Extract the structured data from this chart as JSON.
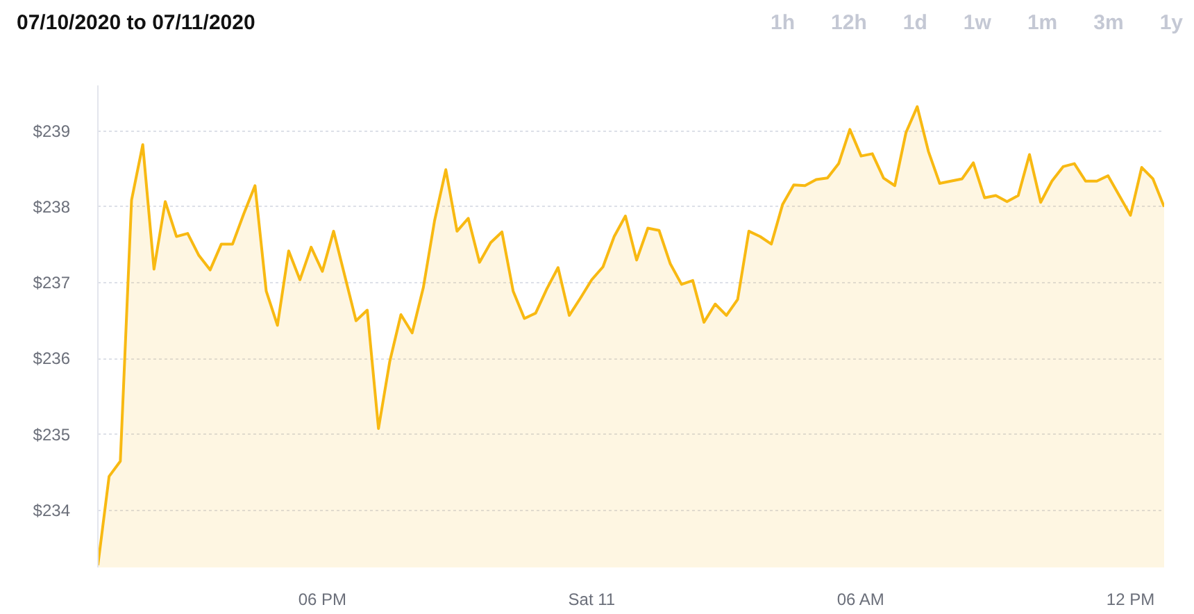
{
  "chart_data": {
    "type": "area",
    "title": "07/10/2020 to 07/11/2020",
    "annotations": [
      "1h",
      "12h",
      "1d",
      "1w",
      "1m",
      "3m",
      "1y"
    ],
    "x": [
      "2020-07-10T13:00",
      "2020-07-10T13:15",
      "2020-07-10T13:30",
      "2020-07-10T13:45",
      "2020-07-10T14:00",
      "2020-07-10T14:15",
      "2020-07-10T14:30",
      "2020-07-10T14:45",
      "2020-07-10T15:00",
      "2020-07-10T15:15",
      "2020-07-10T15:30",
      "2020-07-10T15:45",
      "2020-07-10T16:00",
      "2020-07-10T16:15",
      "2020-07-10T16:30",
      "2020-07-10T16:45",
      "2020-07-10T17:00",
      "2020-07-10T17:15",
      "2020-07-10T17:30",
      "2020-07-10T17:45",
      "2020-07-10T18:00",
      "2020-07-10T18:15",
      "2020-07-10T18:30",
      "2020-07-10T18:45",
      "2020-07-10T19:00",
      "2020-07-10T19:15",
      "2020-07-10T19:30",
      "2020-07-10T19:45",
      "2020-07-10T20:00",
      "2020-07-10T20:15",
      "2020-07-10T20:30",
      "2020-07-10T20:45",
      "2020-07-10T21:00",
      "2020-07-10T21:15",
      "2020-07-10T21:30",
      "2020-07-10T21:45",
      "2020-07-10T22:00",
      "2020-07-10T22:15",
      "2020-07-10T22:30",
      "2020-07-10T22:45",
      "2020-07-10T23:00",
      "2020-07-10T23:15",
      "2020-07-10T23:30",
      "2020-07-10T23:45",
      "2020-07-11T00:00",
      "2020-07-11T00:15",
      "2020-07-11T00:30",
      "2020-07-11T00:45",
      "2020-07-11T01:00",
      "2020-07-11T01:15",
      "2020-07-11T01:30",
      "2020-07-11T01:45",
      "2020-07-11T02:00",
      "2020-07-11T02:15",
      "2020-07-11T02:30",
      "2020-07-11T02:45",
      "2020-07-11T03:00",
      "2020-07-11T03:15",
      "2020-07-11T03:30",
      "2020-07-11T03:45",
      "2020-07-11T04:00",
      "2020-07-11T04:15",
      "2020-07-11T04:30",
      "2020-07-11T04:45",
      "2020-07-11T05:00",
      "2020-07-11T05:15",
      "2020-07-11T05:30",
      "2020-07-11T05:45",
      "2020-07-11T06:00",
      "2020-07-11T06:15",
      "2020-07-11T06:30",
      "2020-07-11T06:45",
      "2020-07-11T07:00",
      "2020-07-11T07:15",
      "2020-07-11T07:30",
      "2020-07-11T07:45",
      "2020-07-11T08:00",
      "2020-07-11T08:15",
      "2020-07-11T08:30",
      "2020-07-11T08:45",
      "2020-07-11T09:00",
      "2020-07-11T09:15",
      "2020-07-11T09:30",
      "2020-07-11T09:45",
      "2020-07-11T10:00",
      "2020-07-11T10:15",
      "2020-07-11T10:30",
      "2020-07-11T10:45",
      "2020-07-11T11:00",
      "2020-07-11T11:15",
      "2020-07-11T11:30",
      "2020-07-11T11:45",
      "2020-07-11T12:00",
      "2020-07-11T12:15",
      "2020-07-11T12:30",
      "2020-07-11T12:45"
    ],
    "series": [
      {
        "color": "#f8b912",
        "values": [
          233.28,
          234.45,
          234.65,
          238.09,
          238.82,
          237.18,
          238.07,
          237.61,
          237.65,
          237.36,
          237.17,
          237.51,
          237.51,
          237.91,
          238.28,
          236.89,
          236.44,
          237.42,
          237.04,
          237.47,
          237.15,
          237.68,
          237.09,
          236.5,
          236.64,
          235.08,
          235.96,
          236.58,
          236.34,
          236.94,
          237.82,
          238.49,
          237.68,
          237.85,
          237.27,
          237.53,
          237.67,
          236.89,
          236.53,
          236.6,
          236.92,
          237.2,
          236.57,
          236.8,
          237.04,
          237.21,
          237.61,
          237.88,
          237.3,
          237.72,
          237.69,
          237.25,
          236.98,
          237.03,
          236.48,
          236.72,
          236.57,
          236.78,
          237.68,
          237.61,
          237.51,
          238.03,
          238.29,
          238.28,
          238.36,
          238.38,
          238.57,
          239.02,
          238.67,
          238.7,
          238.38,
          238.28,
          238.98,
          239.32,
          238.73,
          238.31,
          238.34,
          238.37,
          238.58,
          238.12,
          238.15,
          238.07,
          238.15,
          238.69,
          238.06,
          238.34,
          238.53,
          238.57,
          238.34,
          238.34,
          238.41,
          238.15,
          237.89,
          238.52,
          238.37,
          238.0
        ]
      }
    ],
    "xlim": [
      "2020-07-10T13:00",
      "2020-07-11T12:45"
    ],
    "xticks": [
      {
        "value": "2020-07-10T18:00",
        "label": "06 PM"
      },
      {
        "value": "2020-07-11T00:00",
        "label": "Sat 11"
      },
      {
        "value": "2020-07-11T06:00",
        "label": "06 AM"
      },
      {
        "value": "2020-07-11T12:00",
        "label": "12 PM"
      }
    ],
    "ylim": [
      233.25,
      239.6
    ],
    "yticks": [
      {
        "value": 234,
        "label": "$234"
      },
      {
        "value": 235,
        "label": "$235"
      },
      {
        "value": 236,
        "label": "$236"
      },
      {
        "value": 237,
        "label": "$237"
      },
      {
        "value": 238,
        "label": "$238"
      },
      {
        "value": 239,
        "label": "$239"
      }
    ],
    "grid": "y"
  }
}
